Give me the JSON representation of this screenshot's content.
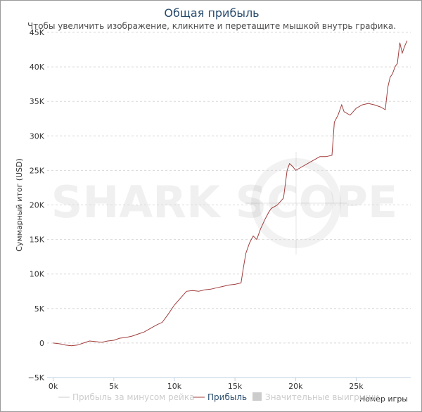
{
  "header": {
    "title": "Общая прибыль",
    "subtitle": "Чтобы увеличить изображение, кликните и перетащите мышкой внутрь графика."
  },
  "watermark": {
    "text": "SHARK SCOPE"
  },
  "colors": {
    "profit_line": "#a13d3d",
    "rake_line": "#cccccc",
    "gridline": "#d8d8d8",
    "title": "#274b6d"
  },
  "chart_data": {
    "type": "line",
    "title": "Общая прибыль",
    "xlabel": "Номер игры",
    "ylabel": "Суммарный итог (USD)",
    "xlim": [
      -500,
      29500
    ],
    "ylim": [
      -5000,
      45000
    ],
    "x_ticks": [
      0,
      5000,
      10000,
      15000,
      20000,
      25000
    ],
    "x_tick_labels": [
      "0k",
      "5k",
      "10k",
      "15k",
      "20k",
      "25k"
    ],
    "y_ticks": [
      -5000,
      0,
      5000,
      10000,
      15000,
      20000,
      25000,
      30000,
      35000,
      40000,
      45000
    ],
    "y_tick_labels": [
      "−5K",
      "0",
      "5K",
      "10K",
      "15K",
      "20K",
      "25K",
      "30K",
      "35K",
      "40K",
      "45K"
    ],
    "grid": "horizontal-dashed",
    "legend_position": "bottom",
    "legend": [
      {
        "name": "Прибыль за минусом рейка",
        "style": "line",
        "visible": false
      },
      {
        "name": "Прибыль",
        "style": "line",
        "visible": true
      },
      {
        "name": "Значительные выигрыши",
        "style": "box",
        "visible": false
      }
    ],
    "series": [
      {
        "name": "Прибыль",
        "x": [
          0,
          500,
          1000,
          1500,
          2000,
          2500,
          3000,
          3500,
          4000,
          4500,
          5000,
          5500,
          6000,
          6500,
          7000,
          7500,
          8000,
          8500,
          9000,
          9500,
          10000,
          10500,
          11000,
          11500,
          12000,
          12500,
          13000,
          13500,
          14000,
          14500,
          15000,
          15500,
          15700,
          15900,
          16200,
          16500,
          16800,
          17100,
          17500,
          17800,
          18000,
          18500,
          19000,
          19300,
          19500,
          19800,
          20000,
          20500,
          21000,
          21500,
          22000,
          22500,
          23000,
          23200,
          23500,
          23800,
          24000,
          24500,
          25000,
          25500,
          26000,
          26500,
          27000,
          27400,
          27600,
          27800,
          28000,
          28200,
          28400,
          28600,
          28800,
          29000,
          29200
        ],
        "y": [
          0,
          -100,
          -300,
          -400,
          -300,
          0,
          300,
          200,
          100,
          300,
          400,
          700,
          800,
          1000,
          1300,
          1600,
          2100,
          2600,
          3000,
          4200,
          5500,
          6500,
          7500,
          7600,
          7500,
          7700,
          7800,
          8000,
          8200,
          8400,
          8500,
          8700,
          11000,
          13000,
          14500,
          15500,
          15000,
          16500,
          18000,
          19000,
          19500,
          20000,
          21000,
          25000,
          26000,
          25500,
          25000,
          25500,
          26000,
          26500,
          27000,
          27000,
          27200,
          32000,
          33000,
          34500,
          33500,
          33000,
          34000,
          34500,
          34700,
          34500,
          34200,
          33800,
          37000,
          38500,
          39000,
          40000,
          40500,
          43500,
          42000,
          43000,
          43800
        ]
      }
    ]
  }
}
